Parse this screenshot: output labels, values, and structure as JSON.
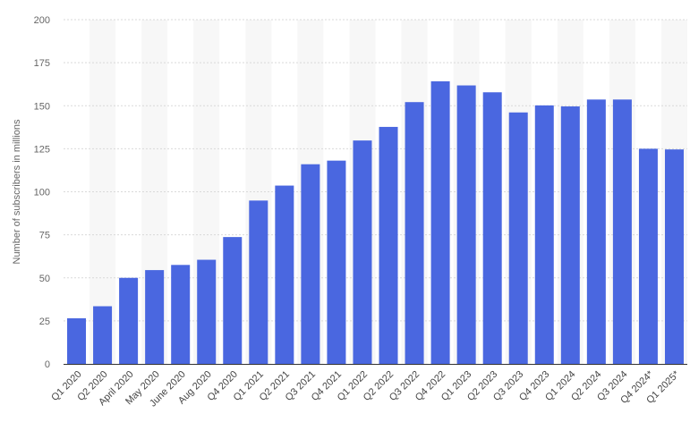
{
  "chart_data": {
    "type": "bar",
    "categories": [
      "Q1 2020",
      "Q2 2020",
      "April 2020",
      "May 2020",
      "June 2020",
      "Aug 2020",
      "Q4 2020",
      "Q1 2021",
      "Q2 2021",
      "Q3 2021",
      "Q4 2021",
      "Q1 2022",
      "Q2 2022",
      "Q3 2022",
      "Q4 2022",
      "Q1 2023",
      "Q2 2023",
      "Q3 2023",
      "Q4 2023",
      "Q1 2024",
      "Q2 2024",
      "Q3 2024",
      "Q4 2024*",
      "Q1 2025*"
    ],
    "values": [
      26.5,
      33.5,
      50,
      54.5,
      57.5,
      60.5,
      73.7,
      94.9,
      103.6,
      116,
      118.1,
      129.8,
      137.7,
      152.1,
      164.2,
      161.8,
      157.8,
      146.1,
      150.2,
      149.6,
      153.6,
      153.6,
      125,
      124.6
    ],
    "ylabel": "Number of subscribers in millions",
    "xlabel": "",
    "ylim": [
      0,
      200
    ],
    "yticks": [
      0,
      25,
      50,
      75,
      100,
      125,
      150,
      175,
      200
    ],
    "grid": true,
    "bar_color": "#4a67e0",
    "band_color": "#f7f7f7",
    "grid_color": "#d9d9d9"
  }
}
